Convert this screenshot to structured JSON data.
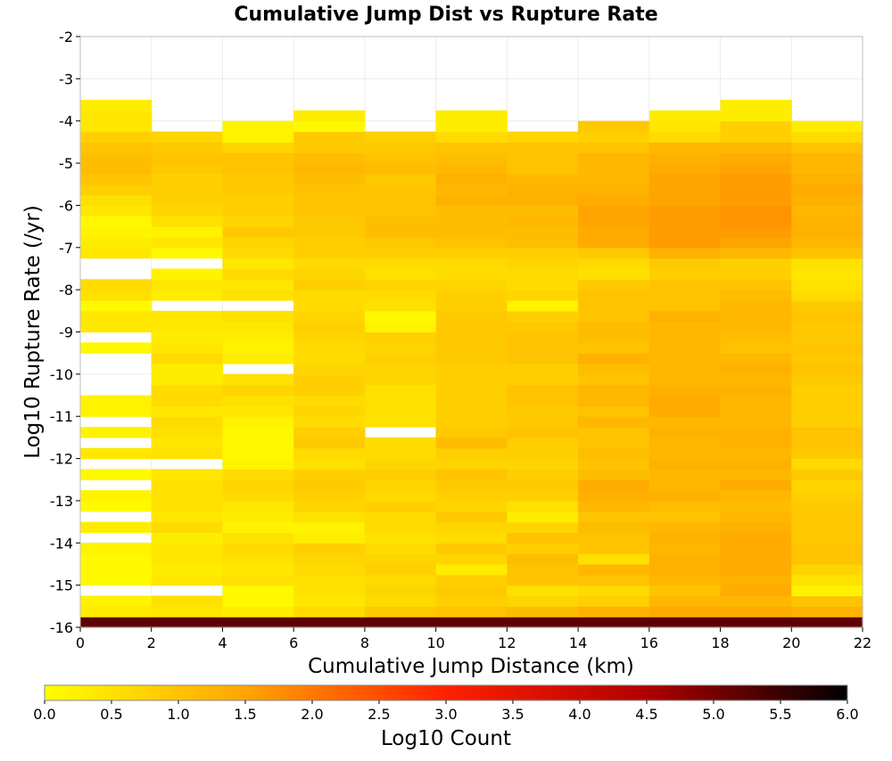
{
  "chart_data": {
    "type": "heatmap",
    "title": "Cumulative Jump Dist vs Rupture Rate",
    "xlabel": "Cumulative Jump Distance (km)",
    "ylabel": "Log10 Rupture Rate (/yr)",
    "xlim": [
      0,
      22
    ],
    "ylim": [
      -16,
      -2
    ],
    "x_ticks": [
      "0",
      "2",
      "4",
      "6",
      "8",
      "10",
      "12",
      "14",
      "16",
      "18",
      "20",
      "22"
    ],
    "y_ticks": [
      "-2",
      "-3",
      "-4",
      "-5",
      "-6",
      "-7",
      "-8",
      "-9",
      "-10",
      "-11",
      "-12",
      "-13",
      "-14",
      "-15",
      "-16"
    ],
    "x_bin_width": 2,
    "y_bin_height": 0.25,
    "y_bin_start": -16,
    "columns_x_start": [
      0,
      2,
      4,
      6,
      8,
      10,
      12,
      14,
      16,
      18,
      20
    ],
    "grid": true,
    "values": [
      [
        5.2,
        5.2,
        5.2,
        5.2,
        5.2,
        5.2,
        5.2,
        5.2,
        5.2,
        5.2,
        5.2
      ],
      [
        0.3,
        0.4,
        0.3,
        0.6,
        0.9,
        1.0,
        1.1,
        1.3,
        1.4,
        1.4,
        1.3
      ],
      [
        0.2,
        0.5,
        0.1,
        0.4,
        0.6,
        0.8,
        0.7,
        0.8,
        1.2,
        1.2,
        1.0
      ],
      [
        null,
        null,
        0.1,
        0.5,
        0.7,
        0.9,
        0.5,
        0.6,
        1.0,
        1.4,
        0.2
      ],
      [
        0.1,
        0.4,
        0.5,
        0.5,
        0.6,
        0.8,
        1.0,
        1.0,
        1.2,
        1.3,
        0.5
      ],
      [
        0.1,
        0.3,
        0.4,
        0.6,
        0.8,
        0.3,
        1.0,
        1.2,
        1.3,
        1.4,
        0.7
      ],
      [
        0.1,
        0.4,
        0.5,
        0.7,
        0.7,
        0.7,
        1.1,
        0.5,
        1.3,
        1.4,
        1.0
      ],
      [
        0.2,
        0.4,
        0.6,
        0.8,
        0.6,
        0.9,
        0.8,
        1.0,
        1.2,
        1.4,
        1.0
      ],
      [
        null,
        0.3,
        0.5,
        0.3,
        0.5,
        0.6,
        1.0,
        1.0,
        1.3,
        1.4,
        0.9
      ],
      [
        0.3,
        0.6,
        0.2,
        0.2,
        0.6,
        0.7,
        0.7,
        1.1,
        1.2,
        1.3,
        0.9
      ],
      [
        null,
        0.4,
        0.3,
        0.5,
        0.6,
        0.9,
        0.3,
        1.0,
        1.0,
        1.2,
        0.9
      ],
      [
        0.1,
        0.5,
        0.4,
        0.7,
        0.8,
        0.7,
        0.5,
        1.2,
        1.1,
        1.1,
        0.9
      ],
      [
        0.2,
        0.5,
        0.6,
        0.8,
        0.6,
        0.8,
        0.8,
        1.3,
        1.3,
        1.2,
        0.8
      ],
      [
        null,
        0.5,
        0.7,
        0.9,
        0.7,
        0.9,
        0.9,
        1.4,
        1.2,
        1.4,
        0.7
      ],
      [
        0.1,
        0.4,
        0.6,
        0.8,
        0.8,
        1.0,
        0.8,
        1.1,
        1.2,
        1.2,
        0.9
      ],
      [
        null,
        null,
        0.2,
        0.5,
        0.7,
        0.7,
        0.7,
        1.0,
        1.3,
        1.3,
        0.6
      ],
      [
        0.4,
        0.5,
        0.1,
        0.6,
        0.6,
        0.8,
        0.8,
        1.1,
        1.2,
        1.2,
        0.9
      ],
      [
        null,
        0.4,
        0.1,
        0.9,
        0.6,
        1.1,
        0.8,
        1.0,
        1.2,
        1.3,
        1.0
      ],
      [
        0.2,
        0.5,
        0.1,
        0.8,
        null,
        0.9,
        1.0,
        1.0,
        1.3,
        1.3,
        1.0
      ],
      [
        null,
        0.6,
        0.2,
        0.6,
        0.5,
        0.8,
        0.9,
        1.2,
        1.2,
        1.2,
        0.8
      ],
      [
        0.2,
        0.4,
        0.4,
        0.7,
        0.5,
        0.8,
        0.9,
        1.0,
        1.4,
        1.2,
        0.8
      ],
      [
        0.2,
        0.6,
        0.5,
        0.6,
        0.5,
        0.8,
        1.0,
        1.2,
        1.4,
        1.2,
        0.8
      ],
      [
        null,
        0.6,
        0.7,
        0.8,
        0.5,
        0.8,
        1.0,
        1.2,
        1.3,
        1.3,
        0.8
      ],
      [
        null,
        0.3,
        0.5,
        0.8,
        0.7,
        0.8,
        0.8,
        1.0,
        1.2,
        1.2,
        0.9
      ],
      [
        null,
        0.3,
        null,
        0.7,
        0.7,
        0.8,
        0.8,
        1.1,
        1.2,
        1.3,
        1.0
      ],
      [
        null,
        0.6,
        0.3,
        0.6,
        0.8,
        0.9,
        1.0,
        1.3,
        1.2,
        1.2,
        0.9
      ],
      [
        0.1,
        0.4,
        0.2,
        0.6,
        0.7,
        0.9,
        1.0,
        1.0,
        1.2,
        1.0,
        1.0
      ],
      [
        null,
        0.3,
        0.3,
        0.7,
        0.8,
        0.9,
        1.0,
        1.1,
        1.2,
        1.1,
        0.9
      ],
      [
        0.4,
        0.4,
        0.4,
        0.8,
        0.2,
        0.9,
        0.9,
        1.1,
        1.2,
        1.2,
        0.9
      ],
      [
        0.4,
        0.4,
        0.5,
        0.7,
        0.1,
        0.9,
        0.8,
        1.0,
        1.3,
        1.2,
        1.0
      ],
      [
        0.1,
        null,
        null,
        0.6,
        0.5,
        0.8,
        0.2,
        1.0,
        1.0,
        1.2,
        0.9
      ],
      [
        0.5,
        0.3,
        0.5,
        0.6,
        0.6,
        0.8,
        0.7,
        1.0,
        1.0,
        1.1,
        0.6
      ],
      [
        0.6,
        0.4,
        0.4,
        0.8,
        0.7,
        0.7,
        0.6,
        0.9,
        1.0,
        1.0,
        0.5
      ],
      [
        null,
        0.2,
        0.6,
        0.7,
        0.5,
        0.6,
        0.6,
        0.5,
        0.8,
        0.8,
        0.4
      ],
      [
        null,
        null,
        0.4,
        0.6,
        0.6,
        0.6,
        0.7,
        0.6,
        0.9,
        0.8,
        0.5
      ],
      [
        0.4,
        0.1,
        0.6,
        0.8,
        0.8,
        0.8,
        0.8,
        0.9,
        1.3,
        1.2,
        1.0
      ],
      [
        0.3,
        0.4,
        0.7,
        0.8,
        0.9,
        1.0,
        1.1,
        1.4,
        1.6,
        1.5,
        1.2
      ],
      [
        0.2,
        0.2,
        0.9,
        0.9,
        1.1,
        1.1,
        1.1,
        1.4,
        1.6,
        1.6,
        1.3
      ],
      [
        0.1,
        0.5,
        0.7,
        0.9,
        1.1,
        1.1,
        1.2,
        1.5,
        1.6,
        1.7,
        1.3
      ],
      [
        0.4,
        0.7,
        0.8,
        1.0,
        1.0,
        1.1,
        1.1,
        1.5,
        1.6,
        1.7,
        1.2
      ],
      [
        0.5,
        0.8,
        0.8,
        1.0,
        1.0,
        1.3,
        1.3,
        1.4,
        1.5,
        1.6,
        1.3
      ],
      [
        0.8,
        0.8,
        0.9,
        1.0,
        1.0,
        1.2,
        1.3,
        1.3,
        1.5,
        1.6,
        1.4
      ],
      [
        1.0,
        0.8,
        0.9,
        1.1,
        0.9,
        1.3,
        1.2,
        1.2,
        1.5,
        1.6,
        1.3
      ],
      [
        1.1,
        0.9,
        1.0,
        1.2,
        1.1,
        1.2,
        1.0,
        1.2,
        1.4,
        1.5,
        1.2
      ],
      [
        1.1,
        1.0,
        1.0,
        1.1,
        1.0,
        1.1,
        1.0,
        1.2,
        1.3,
        1.4,
        1.2
      ],
      [
        1.0,
        0.9,
        0.7,
        0.9,
        0.9,
        1.0,
        1.0,
        1.0,
        1.2,
        1.2,
        1.0
      ],
      [
        0.8,
        0.7,
        0.2,
        0.9,
        0.8,
        0.6,
        0.7,
        0.8,
        0.6,
        0.8,
        0.6
      ],
      [
        0.4,
        null,
        0.2,
        0.1,
        null,
        0.3,
        null,
        0.9,
        0.4,
        0.8,
        0.3
      ],
      [
        0.4,
        null,
        null,
        0.3,
        null,
        0.3,
        null,
        null,
        0.3,
        0.3,
        null
      ],
      [
        0.3,
        null,
        null,
        null,
        null,
        null,
        null,
        null,
        null,
        0.3,
        null
      ],
      [
        null,
        null,
        null,
        null,
        null,
        null,
        null,
        null,
        null,
        null,
        null
      ],
      [
        null,
        null,
        null,
        null,
        null,
        null,
        null,
        null,
        null,
        null,
        null
      ],
      [
        null,
        null,
        null,
        null,
        null,
        null,
        null,
        null,
        null,
        null,
        null
      ],
      [
        null,
        null,
        null,
        null,
        null,
        null,
        null,
        null,
        null,
        null,
        null
      ],
      [
        null,
        null,
        null,
        null,
        null,
        null,
        null,
        null,
        null,
        null,
        null
      ],
      [
        null,
        null,
        null,
        null,
        null,
        null,
        null,
        null,
        null,
        null,
        null
      ]
    ],
    "colorbar": {
      "label": "Log10 Count",
      "range": [
        0,
        6
      ],
      "ticks": [
        "0.0",
        "0.5",
        "1.0",
        "1.5",
        "2.0",
        "2.5",
        "3.0",
        "3.5",
        "4.0",
        "4.5",
        "5.0",
        "5.5",
        "6.0"
      ],
      "placement": "bottom",
      "colors": [
        "#ffff00",
        "#ffa500",
        "#ff2000",
        "#b00000",
        "#000000"
      ]
    }
  }
}
